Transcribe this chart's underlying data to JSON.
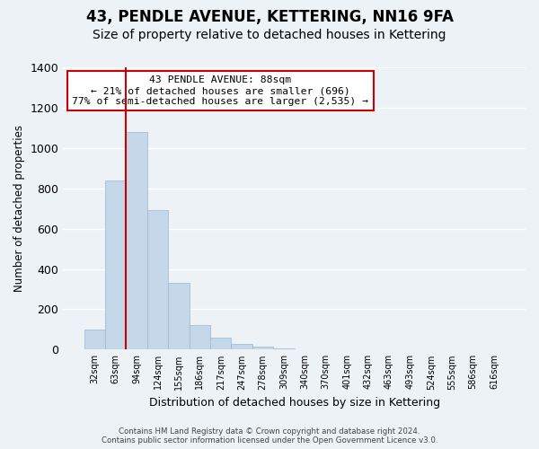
{
  "title": "43, PENDLE AVENUE, KETTERING, NN16 9FA",
  "subtitle": "Size of property relative to detached houses in Kettering",
  "xlabel": "Distribution of detached houses by size in Kettering",
  "ylabel": "Number of detached properties",
  "bar_values": [
    100,
    840,
    1080,
    690,
    330,
    120,
    60,
    30,
    15,
    5,
    0,
    0,
    0,
    0,
    0,
    0,
    0,
    0,
    0,
    0
  ],
  "bar_labels": [
    "32sqm",
    "63sqm",
    "94sqm",
    "124sqm",
    "155sqm",
    "186sqm",
    "217sqm",
    "247sqm",
    "278sqm",
    "309sqm",
    "340sqm",
    "370sqm",
    "401sqm",
    "432sqm",
    "463sqm",
    "493sqm",
    "524sqm",
    "555sqm",
    "586sqm",
    "616sqm"
  ],
  "bar_color": "#c5d8ea",
  "bar_edge_color": "#9ab8d0",
  "vline_color": "#cc0000",
  "ylim": [
    0,
    1400
  ],
  "yticks": [
    0,
    200,
    400,
    600,
    800,
    1000,
    1200,
    1400
  ],
  "annotation_title": "43 PENDLE AVENUE: 88sqm",
  "annotation_line1": "← 21% of detached houses are smaller (696)",
  "annotation_line2": "77% of semi-detached houses are larger (2,535) →",
  "annotation_box_color": "#ffffff",
  "annotation_box_edge": "#cc0000",
  "footer1": "Contains HM Land Registry data © Crown copyright and database right 2024.",
  "footer2": "Contains public sector information licensed under the Open Government Licence v3.0.",
  "background_color": "#edf2f7",
  "plot_background": "#edf2f7",
  "grid_color": "#ffffff",
  "title_fontsize": 12,
  "subtitle_fontsize": 10
}
